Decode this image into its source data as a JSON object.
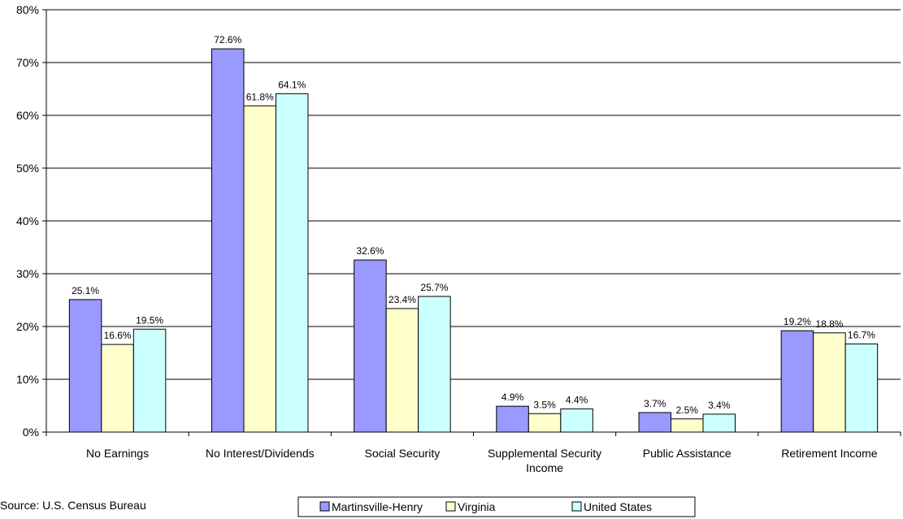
{
  "source_note": "Source: U.S. Census Bureau",
  "chart_data": {
    "type": "bar",
    "categories": [
      "No Earnings",
      "No Interest/Dividends",
      "Social Security",
      "Supplemental Security Income",
      "Public Assistance",
      "Retirement Income"
    ],
    "series": [
      {
        "name": "Martinsville-Henry",
        "color": "#9999ff",
        "values": [
          25.1,
          72.6,
          32.6,
          4.9,
          3.7,
          19.2
        ],
        "labels": [
          "25.1%",
          "72.6%",
          "32.6%",
          "4.9%",
          "3.7%",
          "19.2%"
        ]
      },
      {
        "name": "Virginia",
        "color": "#ffffcc",
        "values": [
          16.6,
          61.8,
          23.4,
          3.5,
          2.5,
          18.8
        ],
        "labels": [
          "16.6%",
          "61.8%",
          "23.4%",
          "3.5%",
          "2.5%",
          "18.8%"
        ]
      },
      {
        "name": "United States",
        "color": "#ccffff",
        "values": [
          19.5,
          64.1,
          25.7,
          4.4,
          3.4,
          16.7
        ],
        "labels": [
          "19.5%",
          "64.1%",
          "25.7%",
          "4.4%",
          "3.4%",
          "16.7%"
        ]
      }
    ],
    "ylim": [
      0,
      80
    ],
    "yticks": [
      "0%",
      "10%",
      "20%",
      "30%",
      "40%",
      "50%",
      "60%",
      "70%",
      "80%"
    ],
    "grid": true,
    "legend_position": "bottom"
  }
}
